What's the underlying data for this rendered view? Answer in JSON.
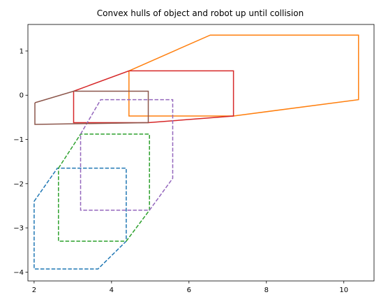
{
  "chart_data": {
    "type": "line",
    "title": "Convex hulls of object and robot up until collision",
    "xlabel": "",
    "ylabel": "",
    "xlim": [
      1.84,
      10.78
    ],
    "ylim": [
      -4.2,
      1.6
    ],
    "xticks": [
      2,
      4,
      6,
      8,
      10
    ],
    "yticks": [
      -4,
      -3,
      -2,
      -1,
      0,
      1
    ],
    "grid": false,
    "series": [
      {
        "color": "#1f77b4",
        "dash": "dashed",
        "points": [
          [
            2.0,
            -2.4
          ],
          [
            2.6,
            -1.65
          ],
          [
            4.38,
            -1.65
          ],
          [
            4.38,
            -3.3
          ],
          [
            3.65,
            -3.93
          ],
          [
            2.0,
            -3.93
          ],
          [
            2.0,
            -2.4
          ]
        ]
      },
      {
        "color": "#ff7f0e",
        "dash": "solid",
        "points": [
          [
            4.45,
            0.55
          ],
          [
            6.55,
            1.36
          ],
          [
            10.38,
            1.36
          ],
          [
            10.38,
            -0.1
          ],
          [
            7.15,
            -0.47
          ],
          [
            4.45,
            -0.47
          ],
          [
            4.45,
            0.55
          ]
        ]
      },
      {
        "color": "#2ca02c",
        "dash": "dashed",
        "points": [
          [
            2.63,
            -1.65
          ],
          [
            3.2,
            -0.88
          ],
          [
            4.98,
            -0.88
          ],
          [
            4.98,
            -2.6
          ],
          [
            4.38,
            -3.3
          ],
          [
            2.63,
            -3.3
          ],
          [
            2.63,
            -1.65
          ]
        ]
      },
      {
        "color": "#d62728",
        "dash": "solid",
        "points": [
          [
            3.02,
            0.09
          ],
          [
            4.45,
            0.55
          ],
          [
            7.15,
            0.55
          ],
          [
            7.15,
            -0.47
          ],
          [
            4.95,
            -0.62
          ],
          [
            3.02,
            -0.62
          ],
          [
            3.02,
            0.09
          ]
        ]
      },
      {
        "color": "#9467bd",
        "dash": "dashed",
        "points": [
          [
            3.2,
            -0.88
          ],
          [
            3.72,
            -0.1
          ],
          [
            5.58,
            -0.1
          ],
          [
            5.58,
            -1.88
          ],
          [
            4.98,
            -2.6
          ],
          [
            3.2,
            -2.6
          ],
          [
            3.2,
            -0.88
          ]
        ]
      },
      {
        "color": "#8c564b",
        "dash": "solid",
        "points": [
          [
            2.02,
            -0.17
          ],
          [
            3.02,
            0.09
          ],
          [
            4.95,
            0.09
          ],
          [
            4.95,
            -0.62
          ],
          [
            2.02,
            -0.66
          ],
          [
            2.02,
            -0.17
          ]
        ]
      }
    ]
  }
}
